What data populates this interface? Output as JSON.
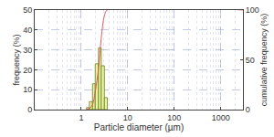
{
  "chart_data": {
    "type": "histogram",
    "x_label": "Particle diameter (µm)",
    "y_label": "frequency (%)",
    "y2_label": "cumulative frequency (%)",
    "bins": [
      1.3,
      1.5,
      1.75,
      2.0,
      2.35,
      2.7,
      3.15,
      3.65
    ],
    "values": [
      1,
      4,
      13,
      23,
      31,
      22,
      6
    ],
    "color": "#e8f5a0",
    "cumulative": {
      "type": "line",
      "axis": "y2",
      "color": "#e05a5a",
      "x": [
        1.3,
        1.5,
        1.75,
        2.0,
        2.35,
        2.7,
        3.15,
        3.65,
        3000
      ],
      "values": [
        0,
        1,
        5,
        18,
        41,
        72,
        94,
        100,
        100
      ]
    },
    "log": "x",
    "grid": true,
    "xlim": [
      0.1,
      3000
    ],
    "xticks": [
      1,
      10,
      100,
      1000
    ],
    "ylim": [
      0,
      50
    ],
    "yticks": [
      0,
      10,
      20,
      30,
      40,
      50
    ],
    "y2lim": [
      0,
      100
    ],
    "y2ticks": [
      0,
      50,
      100
    ]
  }
}
